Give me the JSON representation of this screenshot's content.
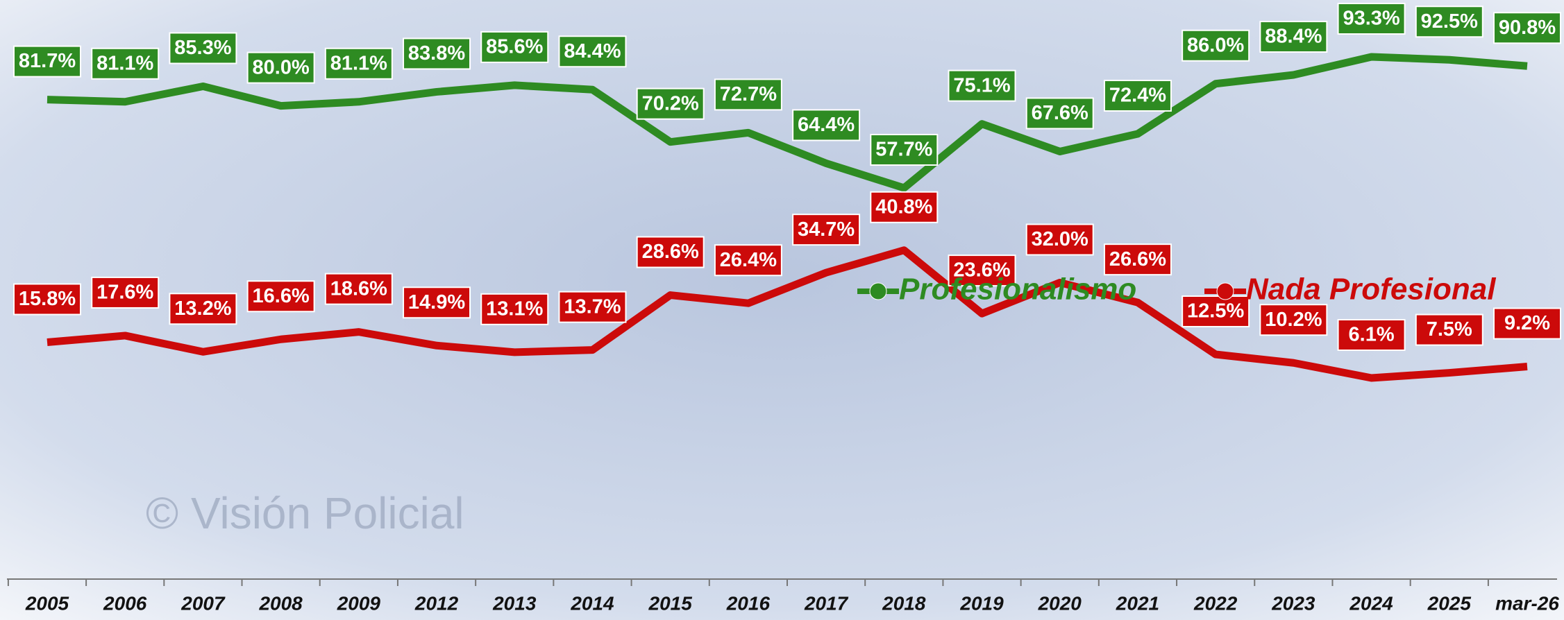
{
  "chart_data": {
    "type": "line",
    "watermark": "© Visión Policial",
    "categories": [
      "2005",
      "2006",
      "2007",
      "2008",
      "2009",
      "2012",
      "2013",
      "2014",
      "2015",
      "2016",
      "2017",
      "2018",
      "2019",
      "2020",
      "2021",
      "2022",
      "2023",
      "2024",
      "2025",
      "mar-26"
    ],
    "series": [
      {
        "name": "Profesionalismo",
        "color": "#2e8b22",
        "values": [
          81.7,
          81.1,
          85.3,
          80.0,
          81.1,
          83.8,
          85.6,
          84.4,
          70.2,
          72.7,
          64.4,
          57.7,
          75.1,
          67.6,
          72.4,
          86.0,
          88.4,
          93.3,
          92.5,
          90.8
        ],
        "value_labels": [
          "81.7%",
          "81.1%",
          "85.3%",
          "80.0%",
          "81.1%",
          "83.8%",
          "85.6%",
          "84.4%",
          "70.2%",
          "72.7%",
          "64.4%",
          "57.7%",
          "75.1%",
          "67.6%",
          "72.4%",
          "86.0%",
          "88.4%",
          "93.3%",
          "92.5%",
          "90.8%"
        ]
      },
      {
        "name": "Nada Profesional",
        "color": "#cc0a0a",
        "values": [
          15.8,
          17.6,
          13.2,
          16.6,
          18.6,
          14.9,
          13.1,
          13.7,
          28.6,
          26.4,
          34.7,
          40.8,
          23.6,
          32.0,
          26.6,
          12.5,
          10.2,
          6.1,
          7.5,
          9.2
        ],
        "value_labels": [
          "15.8%",
          "17.6%",
          "13.2%",
          "16.6%",
          "18.6%",
          "14.9%",
          "13.1%",
          "13.7%",
          "28.6%",
          "26.4%",
          "34.7%",
          "40.8%",
          "23.6%",
          "32.0%",
          "26.6%",
          "12.5%",
          "10.2%",
          "6.1%",
          "7.5%",
          "9.2%"
        ]
      }
    ]
  }
}
